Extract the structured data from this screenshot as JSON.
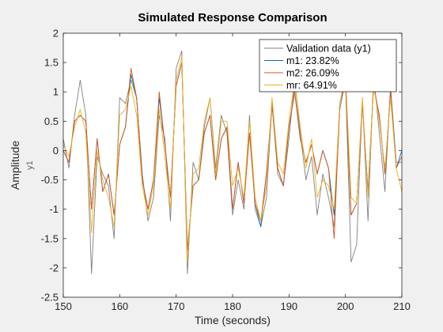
{
  "chart_data": {
    "type": "line",
    "title": "Simulated Response Comparison",
    "xlabel": "Time (seconds)",
    "ylabel": "Amplitude",
    "ylabel_sub": "y1",
    "xlim": [
      150,
      210
    ],
    "ylim": [
      -2.5,
      2
    ],
    "xticks": [
      150,
      160,
      170,
      180,
      190,
      200,
      210
    ],
    "yticks": [
      -2.5,
      -2,
      -1.5,
      -1,
      -0.5,
      0,
      0.5,
      1,
      1.5,
      2
    ],
    "xtick_labels": [
      "150",
      "160",
      "170",
      "180",
      "190",
      "200",
      "210"
    ],
    "ytick_labels": [
      "-2.5",
      "-2",
      "-1.5",
      "-1",
      "-0.5",
      "0",
      "0.5",
      "1",
      "1.5",
      "2"
    ],
    "grid": false,
    "legend_position": "top-right",
    "colors": {
      "figure_bg": "#f0f0f0",
      "axes_bg": "#ffffff",
      "axis": "#262626"
    },
    "series": [
      {
        "name": "Validation data (y1)",
        "color": "#808080",
        "x": [
          150,
          151,
          152,
          153,
          154,
          155,
          156,
          157,
          158,
          159,
          160,
          161,
          162,
          163,
          164,
          165,
          166,
          167,
          168,
          169,
          170,
          171,
          172,
          173,
          174,
          175,
          176,
          177,
          178,
          179,
          180,
          181,
          182,
          183,
          184,
          185,
          186,
          187,
          188,
          189,
          190,
          191,
          192,
          193,
          194,
          195,
          196,
          197,
          198,
          199,
          200,
          201,
          202,
          203,
          204,
          205,
          206,
          207,
          208,
          209,
          210
        ],
        "y": [
          0.2,
          -0.3,
          0.6,
          1.2,
          0.6,
          -2.1,
          -0.1,
          -0.4,
          -0.6,
          -1.5,
          0.9,
          0.8,
          1.2,
          0.9,
          -0.4,
          -1.2,
          -0.8,
          0.6,
          0.2,
          -1.2,
          1.4,
          1.7,
          -2.1,
          -0.2,
          -0.5,
          0.4,
          0.9,
          -0.3,
          0.6,
          0.3,
          -1.1,
          -0.5,
          -1.0,
          0.6,
          -1.0,
          -1.3,
          -0.8,
          0.8,
          -0.4,
          -0.6,
          0.2,
          1.2,
          0.3,
          -0.5,
          -0.1,
          -1.1,
          -0.4,
          -0.8,
          -1.3,
          0.7,
          1.2,
          -1.9,
          -1.6,
          0.9,
          -1.2,
          1.3,
          0.3,
          -0.7,
          1.1,
          -0.2,
          -0.2
        ]
      },
      {
        "name": "m1: 23.82%",
        "color": "#0072bd",
        "x": [
          150,
          151,
          152,
          153,
          154,
          155,
          156,
          157,
          158,
          159,
          160,
          161,
          162,
          163,
          164,
          165,
          166,
          167,
          168,
          169,
          170,
          171,
          172,
          173,
          174,
          175,
          176,
          177,
          178,
          179,
          180,
          181,
          182,
          183,
          184,
          185,
          186,
          187,
          188,
          189,
          190,
          191,
          192,
          193,
          194,
          195,
          196,
          197,
          198,
          199,
          200,
          201,
          202,
          203,
          204,
          205,
          206,
          207,
          208,
          209,
          210
        ],
        "y": [
          0,
          -0.2,
          0.5,
          0.6,
          0.5,
          -1.0,
          0.2,
          -0.7,
          -0.4,
          -1.1,
          0.1,
          0.4,
          1.3,
          0.9,
          -0.5,
          -1.0,
          -0.5,
          0.9,
          0.1,
          -0.8,
          1.1,
          1.5,
          -1.7,
          -0.6,
          -0.5,
          0.3,
          0.6,
          -0.5,
          0.2,
          0.4,
          -1.0,
          -0.2,
          -0.9,
          0.3,
          -0.9,
          -1.3,
          -0.4,
          0.8,
          -0.3,
          -0.6,
          0.4,
          1.0,
          0.2,
          -0.2,
          0.1,
          -0.4,
          0.0,
          -0.3,
          -1.1,
          0.8,
          1.2,
          -1.1,
          -0.9,
          0.8,
          -0.7,
          1.1,
          0.6,
          -0.4,
          1.0,
          -0.3,
          0.0
        ]
      },
      {
        "name": "m2: 26.09%",
        "color": "#d95319",
        "x": [
          150,
          151,
          152,
          153,
          154,
          155,
          156,
          157,
          158,
          159,
          160,
          161,
          162,
          163,
          164,
          165,
          166,
          167,
          168,
          169,
          170,
          171,
          172,
          173,
          174,
          175,
          176,
          177,
          178,
          179,
          180,
          181,
          182,
          183,
          184,
          185,
          186,
          187,
          188,
          189,
          190,
          191,
          192,
          193,
          194,
          195,
          196,
          197,
          198,
          199,
          200,
          201,
          202,
          203,
          204,
          205,
          206,
          207,
          208,
          209,
          210
        ],
        "y": [
          0,
          -0.2,
          0.5,
          0.6,
          0.5,
          -1.0,
          0.2,
          -0.7,
          -0.4,
          -1.1,
          0.1,
          0.4,
          1.4,
          0.9,
          -0.5,
          -1.0,
          -0.5,
          1.0,
          0.1,
          -0.8,
          1.1,
          1.5,
          -1.7,
          -0.6,
          -0.5,
          0.3,
          0.6,
          -0.5,
          0.2,
          0.4,
          -1.0,
          -0.2,
          -0.9,
          0.3,
          -0.9,
          -1.2,
          -0.4,
          0.8,
          -0.3,
          -0.6,
          0.4,
          1.0,
          0.2,
          -0.2,
          0.1,
          -0.4,
          0.0,
          -0.3,
          -1.5,
          0.8,
          1.2,
          -1.1,
          -0.9,
          0.8,
          -0.7,
          1.1,
          0.6,
          -0.4,
          1.0,
          -0.3,
          -0.1
        ]
      },
      {
        "name": "mr: 64.91%",
        "color": "#edb120",
        "x": [
          150,
          151,
          152,
          153,
          154,
          155,
          156,
          157,
          158,
          159,
          160,
          161,
          162,
          163,
          164,
          165,
          166,
          167,
          168,
          169,
          170,
          171,
          172,
          173,
          174,
          175,
          176,
          177,
          178,
          179,
          180,
          181,
          182,
          183,
          184,
          185,
          186,
          187,
          188,
          189,
          190,
          191,
          192,
          193,
          194,
          195,
          196,
          197,
          198,
          199,
          200,
          201,
          202,
          203,
          204,
          205,
          206,
          207,
          208,
          209,
          210
        ],
        "y": [
          0.1,
          -0.1,
          0.4,
          0.7,
          0.3,
          -1.4,
          0.0,
          -0.5,
          -0.8,
          -1.3,
          0.6,
          0.7,
          1.1,
          0.6,
          -0.6,
          -1.1,
          -0.6,
          0.7,
          -0.1,
          -1.0,
          1.2,
          1.6,
          -1.9,
          -0.4,
          -0.3,
          0.5,
          0.9,
          -0.4,
          0.5,
          0.5,
          -0.6,
          -0.3,
          -0.8,
          0.5,
          -0.8,
          -1.2,
          -0.6,
          0.9,
          -0.2,
          -0.4,
          0.5,
          1.2,
          0.4,
          -0.3,
          0.2,
          -0.8,
          -0.5,
          -0.6,
          -1.0,
          0.8,
          1.3,
          -0.8,
          -0.9,
          0.9,
          -0.8,
          1.1,
          0.5,
          -0.3,
          0.9,
          -0.3,
          -0.7
        ]
      }
    ]
  }
}
